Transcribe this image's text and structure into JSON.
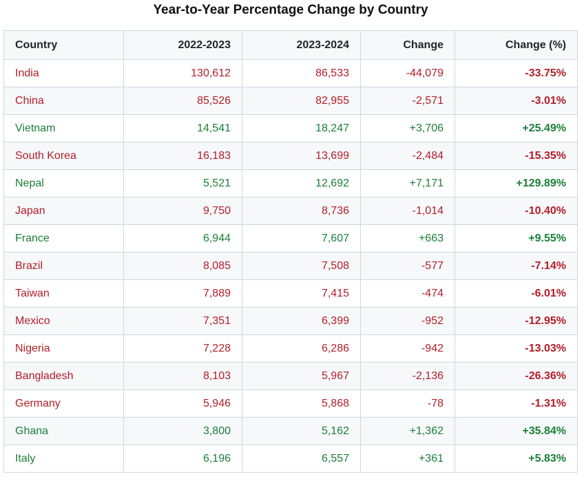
{
  "title": "Year-to-Year Percentage Change by Country",
  "colors": {
    "negative": "#b31d28",
    "positive": "#1a7f37",
    "header_bg": "#f6f8fa",
    "border": "#d0d7de"
  },
  "table": {
    "headers": [
      "Country",
      "2022-2023",
      "2023-2024",
      "Change",
      "Change (%)"
    ],
    "rows": [
      {
        "country": "India",
        "y2022_2023": "130,612",
        "y2023_2024": "86,533",
        "change": "-44,079",
        "change_pct": "-33.75%",
        "trend": "negative"
      },
      {
        "country": "China",
        "y2022_2023": "85,526",
        "y2023_2024": "82,955",
        "change": "-2,571",
        "change_pct": "-3.01%",
        "trend": "negative"
      },
      {
        "country": "Vietnam",
        "y2022_2023": "14,541",
        "y2023_2024": "18,247",
        "change": "+3,706",
        "change_pct": "+25.49%",
        "trend": "positive"
      },
      {
        "country": "South Korea",
        "y2022_2023": "16,183",
        "y2023_2024": "13,699",
        "change": "-2,484",
        "change_pct": "-15.35%",
        "trend": "negative"
      },
      {
        "country": "Nepal",
        "y2022_2023": "5,521",
        "y2023_2024": "12,692",
        "change": "+7,171",
        "change_pct": "+129.89%",
        "trend": "positive"
      },
      {
        "country": "Japan",
        "y2022_2023": "9,750",
        "y2023_2024": "8,736",
        "change": "-1,014",
        "change_pct": "-10.40%",
        "trend": "negative"
      },
      {
        "country": "France",
        "y2022_2023": "6,944",
        "y2023_2024": "7,607",
        "change": "+663",
        "change_pct": "+9.55%",
        "trend": "positive"
      },
      {
        "country": "Brazil",
        "y2022_2023": "8,085",
        "y2023_2024": "7,508",
        "change": "-577",
        "change_pct": "-7.14%",
        "trend": "negative"
      },
      {
        "country": "Taiwan",
        "y2022_2023": "7,889",
        "y2023_2024": "7,415",
        "change": "-474",
        "change_pct": "-6.01%",
        "trend": "negative"
      },
      {
        "country": "Mexico",
        "y2022_2023": "7,351",
        "y2023_2024": "6,399",
        "change": "-952",
        "change_pct": "-12.95%",
        "trend": "negative"
      },
      {
        "country": "Nigeria",
        "y2022_2023": "7,228",
        "y2023_2024": "6,286",
        "change": "-942",
        "change_pct": "-13.03%",
        "trend": "negative"
      },
      {
        "country": "Bangladesh",
        "y2022_2023": "8,103",
        "y2023_2024": "5,967",
        "change": "-2,136",
        "change_pct": "-26.36%",
        "trend": "negative"
      },
      {
        "country": "Germany",
        "y2022_2023": "5,946",
        "y2023_2024": "5,868",
        "change": "-78",
        "change_pct": "-1.31%",
        "trend": "negative"
      },
      {
        "country": "Ghana",
        "y2022_2023": "3,800",
        "y2023_2024": "5,162",
        "change": "+1,362",
        "change_pct": "+35.84%",
        "trend": "positive"
      },
      {
        "country": "Italy",
        "y2022_2023": "6,196",
        "y2023_2024": "6,557",
        "change": "+361",
        "change_pct": "+5.83%",
        "trend": "positive"
      }
    ]
  }
}
